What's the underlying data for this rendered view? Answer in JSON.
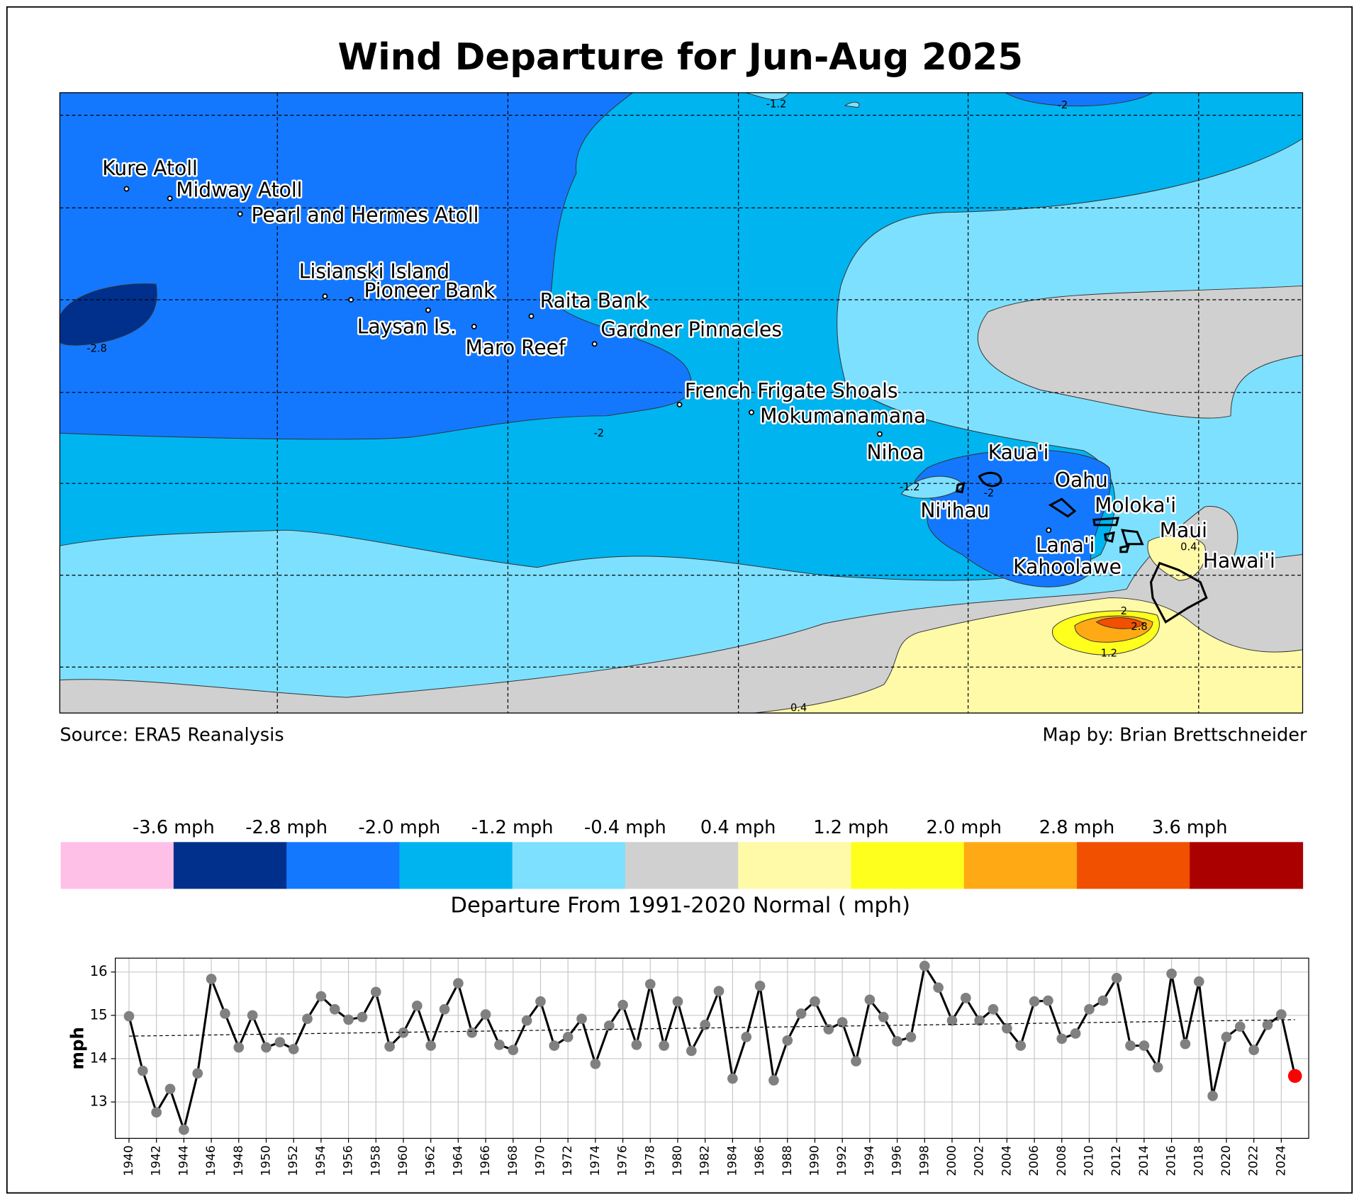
{
  "title": "Wind Departure for Jun-Aug 2025",
  "map": {
    "places": [
      "Kure Atoll",
      "Midway Atoll",
      "Pearl and Hermes Atoll",
      "Lisianski Island",
      "Pioneer Bank",
      "Laysan Is.",
      "Maro Reef",
      "Raita Bank",
      "Gardner Pinnacles",
      "French Frigate Shoals",
      "Mokumanamana",
      "Nihoa",
      "Kaua'i",
      "Oahu",
      "Ni'ihau",
      "Moloka'i",
      "Maui",
      "Lana'i",
      "Kahoolawe",
      "Hawai'i"
    ],
    "contour_labels": [
      -1.2,
      -2,
      -2.8,
      -2,
      -1.2,
      -2,
      2,
      2.8,
      1.2,
      0.4,
      0.4
    ],
    "source": "Source: ERA5 Reanalysis",
    "credit": "Map by: Brian Brettschneider"
  },
  "colorbar": {
    "colors": [
      "#ffc0e8",
      "#00308c",
      "#1478ff",
      "#00b4f0",
      "#7ee0ff",
      "#d0d0d0",
      "#fffaa8",
      "#ffff1e",
      "#ffaa14",
      "#f05000",
      "#aa0000"
    ],
    "lim": [
      -4.4,
      4.4
    ],
    "ticks": [
      {
        "value": -3.6,
        "label": "-3.6 mph"
      },
      {
        "value": -2.8,
        "label": "-2.8 mph"
      },
      {
        "value": -2.0,
        "label": "-2.0 mph"
      },
      {
        "value": -1.2,
        "label": "-1.2 mph"
      },
      {
        "value": -0.4,
        "label": "-0.4 mph"
      },
      {
        "value": 0.4,
        "label": "0.4 mph"
      },
      {
        "value": 1.2,
        "label": "1.2 mph"
      },
      {
        "value": 2.0,
        "label": "2.0 mph"
      },
      {
        "value": 2.8,
        "label": "2.8 mph"
      },
      {
        "value": 3.6,
        "label": "3.6 mph"
      }
    ],
    "label": "Departure From 1991-2020 Normal ( mph)"
  },
  "chart_data": {
    "type": "line",
    "ylabel": "mph",
    "x": [
      1940,
      1941,
      1942,
      1943,
      1944,
      1945,
      1946,
      1947,
      1948,
      1949,
      1950,
      1951,
      1952,
      1953,
      1954,
      1955,
      1956,
      1957,
      1958,
      1959,
      1960,
      1961,
      1962,
      1963,
      1964,
      1965,
      1966,
      1967,
      1968,
      1969,
      1970,
      1971,
      1972,
      1973,
      1974,
      1975,
      1976,
      1977,
      1978,
      1979,
      1980,
      1981,
      1982,
      1983,
      1984,
      1985,
      1986,
      1987,
      1988,
      1989,
      1990,
      1991,
      1992,
      1993,
      1994,
      1995,
      1996,
      1997,
      1998,
      1999,
      2000,
      2001,
      2002,
      2003,
      2004,
      2005,
      2006,
      2007,
      2008,
      2009,
      2010,
      2011,
      2012,
      2013,
      2014,
      2015,
      2016,
      2017,
      2018,
      2019,
      2020,
      2021,
      2022,
      2023,
      2024,
      2025
    ],
    "series": [
      {
        "color": "#000000",
        "marker_color": "#808080",
        "values": [
          14.98,
          13.72,
          12.76,
          13.3,
          12.36,
          13.66,
          15.84,
          15.04,
          14.26,
          15.0,
          14.26,
          14.38,
          14.22,
          14.92,
          15.44,
          15.14,
          14.9,
          14.96,
          15.54,
          14.28,
          14.6,
          15.22,
          14.3,
          15.14,
          15.74,
          14.6,
          15.02,
          14.32,
          14.2,
          14.88,
          15.32,
          14.3,
          14.5,
          14.92,
          13.88,
          14.76,
          15.24,
          14.32,
          15.72,
          14.3,
          15.32,
          14.18,
          14.78,
          15.56,
          13.54,
          14.5,
          15.68,
          13.5,
          14.42,
          15.04,
          15.32,
          14.68,
          14.84,
          13.94,
          15.36,
          14.96,
          14.4,
          14.5,
          16.14,
          15.64,
          14.88,
          15.4,
          14.88,
          15.14,
          14.7,
          14.3,
          15.32,
          15.34,
          14.46,
          14.58,
          15.14,
          15.34,
          15.86,
          14.3,
          14.3,
          13.8,
          15.96,
          14.34,
          15.78,
          13.14,
          14.5,
          14.74,
          14.2,
          14.78,
          15.02,
          13.6
        ]
      },
      {
        "color": "#ff0000",
        "x": [
          2025
        ],
        "values": [
          13.6
        ],
        "markers_only": true
      },
      {
        "color": "#000000",
        "x": [
          1940,
          2025
        ],
        "values": [
          14.52,
          14.9
        ],
        "dashed": true
      }
    ],
    "xlim": [
      1939,
      2026
    ],
    "ylim": [
      12.16,
      16.32
    ],
    "xticks": [
      1940,
      1942,
      1944,
      1946,
      1948,
      1950,
      1952,
      1954,
      1956,
      1958,
      1960,
      1962,
      1964,
      1966,
      1968,
      1970,
      1972,
      1974,
      1976,
      1978,
      1980,
      1982,
      1984,
      1986,
      1988,
      1990,
      1992,
      1994,
      1996,
      1998,
      2000,
      2002,
      2004,
      2006,
      2008,
      2010,
      2012,
      2014,
      2016,
      2018,
      2020,
      2022,
      2024
    ],
    "yticks": [
      13,
      14,
      15,
      16
    ],
    "grid": true
  }
}
